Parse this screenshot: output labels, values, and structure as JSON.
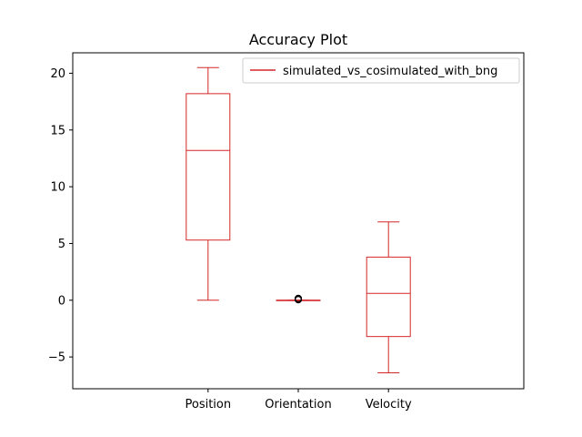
{
  "chart_data": {
    "type": "box",
    "title": "Accuracy Plot",
    "xlabel": "",
    "ylabel": "",
    "categories": [
      "Position",
      "Orientation",
      "Velocity"
    ],
    "ylim": [
      -7.8,
      21.8
    ],
    "yticks": [
      -5,
      0,
      5,
      10,
      15,
      20
    ],
    "ytick_labels": [
      "−5",
      "0",
      "5",
      "10",
      "15",
      "20"
    ],
    "series": [
      {
        "name": "simulated_vs_cosimulated_with_bng",
        "color": "#d62728",
        "boxes": [
          {
            "category": "Position",
            "whisker_low": 0,
            "q1": 5.3,
            "median": 13.2,
            "q3": 18.2,
            "whisker_high": 20.5,
            "outliers": []
          },
          {
            "category": "Orientation",
            "whisker_low": 0,
            "q1": 0,
            "median": 0,
            "q3": 0,
            "whisker_high": 0,
            "outliers": [
              0.05,
              0.1,
              0.15
            ]
          },
          {
            "category": "Velocity",
            "whisker_low": -6.4,
            "q1": -3.2,
            "median": 0.6,
            "q3": 3.8,
            "whisker_high": 6.9,
            "outliers": []
          }
        ]
      }
    ],
    "legend": {
      "position": "top-right"
    },
    "grid": false
  }
}
